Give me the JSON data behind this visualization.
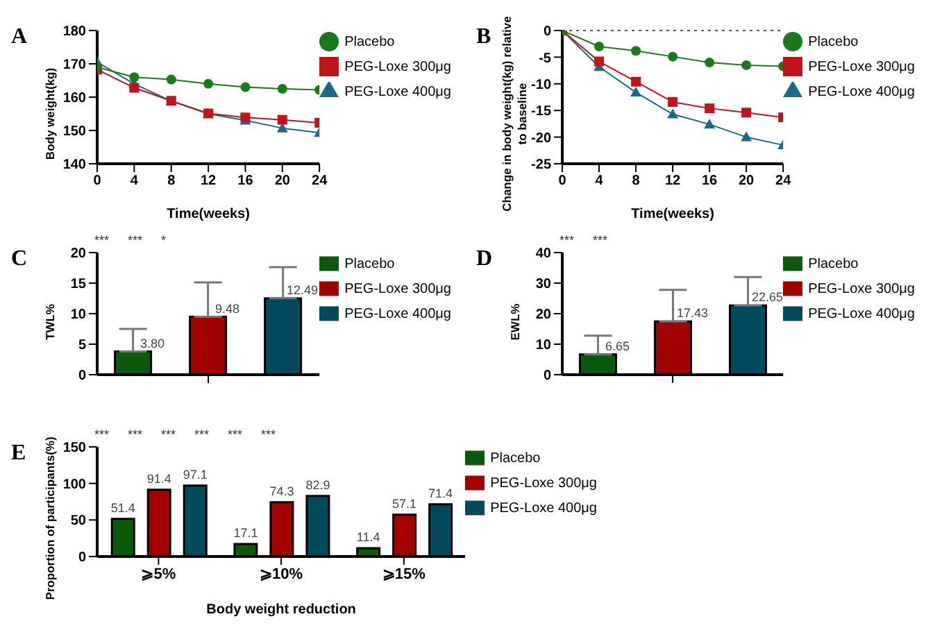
{
  "chart_data": [
    {
      "type": "line",
      "title": "A",
      "xlabel": "Time(weeks)",
      "ylabel": "Body weight(kg)",
      "x": [
        0,
        4,
        8,
        12,
        16,
        20,
        24
      ],
      "xlim": [
        0,
        24
      ],
      "xticks": [
        0,
        4,
        8,
        12,
        16,
        20,
        24
      ],
      "ylim": [
        140,
        180
      ],
      "yticks": [
        140,
        150,
        160,
        170,
        180
      ],
      "legend": "right",
      "series": [
        {
          "name": "Placebo",
          "color": "#1a7a1a",
          "marker": "circle",
          "values": [
            169,
            166,
            165.3,
            164,
            163,
            162.5,
            162.2
          ]
        },
        {
          "name": "PEG-Loxe 300μg",
          "color": "#c0141c",
          "marker": "square",
          "values": [
            168.3,
            162.8,
            158.9,
            155.1,
            153.9,
            153.2,
            152.3
          ]
        },
        {
          "name": "PEG-Loxe 400μg",
          "color": "#1a6a8a",
          "marker": "triangle",
          "values": [
            170.5,
            164,
            158.8,
            155,
            153,
            150.7,
            149.3
          ]
        }
      ]
    },
    {
      "type": "line",
      "title": "B",
      "xlabel": "Time(weeks)",
      "ylabel": "Change in body weight(kg) relative to baseline",
      "x": [
        0,
        4,
        8,
        12,
        16,
        20,
        24
      ],
      "xlim": [
        0,
        24
      ],
      "xticks": [
        0,
        4,
        8,
        12,
        16,
        20,
        24
      ],
      "ylim": [
        -25,
        0
      ],
      "yticks": [
        -25,
        -20,
        -15,
        -10,
        -5,
        0
      ],
      "legend": "right",
      "ref_lines": [
        {
          "axis": "y",
          "value": 0,
          "line_style": "dotted",
          "color": "#555555"
        }
      ],
      "series": [
        {
          "name": "Placebo",
          "color": "#1a7a1a",
          "marker": "circle",
          "values": [
            0,
            -3,
            -3.8,
            -4.9,
            -6,
            -6.5,
            -6.7
          ]
        },
        {
          "name": "PEG-Loxe 300μg",
          "color": "#c0141c",
          "marker": "square",
          "values": [
            0,
            -5.8,
            -9.6,
            -13.4,
            -14.6,
            -15.4,
            -16.3
          ]
        },
        {
          "name": "PEG-Loxe 400μg",
          "color": "#1a6a8a",
          "marker": "triangle",
          "values": [
            0,
            -6.8,
            -11.6,
            -15.7,
            -17.6,
            -20,
            -21.5
          ]
        }
      ]
    },
    {
      "type": "bar",
      "title": "C",
      "ylabel": "TWL%",
      "categories": [
        null
      ],
      "ylim": [
        0,
        20
      ],
      "yticks": [
        0,
        5,
        10,
        15,
        20
      ],
      "legend": "right",
      "annotations": [
        "***",
        "***",
        "*"
      ],
      "series": [
        {
          "name": "Placebo",
          "color": "#0b5a0b",
          "values": [
            3.8
          ],
          "value_labels": [
            "3.80"
          ],
          "errors": [
            [
              3.8,
              7.5
            ]
          ]
        },
        {
          "name": "PEG-Loxe 300μg",
          "color": "#a30000",
          "values": [
            9.48
          ],
          "value_labels": [
            "9.48"
          ],
          "errors": [
            [
              9.48,
              15.1
            ]
          ]
        },
        {
          "name": "PEG-Loxe 400μg",
          "color": "#044a5e",
          "values": [
            12.49
          ],
          "value_labels": [
            "12.49"
          ],
          "errors": [
            [
              12.49,
              17.6
            ]
          ]
        }
      ]
    },
    {
      "type": "bar",
      "title": "D",
      "ylabel": "EWL%",
      "categories": [
        null
      ],
      "ylim": [
        0,
        40
      ],
      "yticks": [
        0,
        10,
        20,
        30,
        40
      ],
      "legend": "right",
      "annotations": [
        "***",
        "***"
      ],
      "series": [
        {
          "name": "Placebo",
          "color": "#0b5a0b",
          "values": [
            6.65
          ],
          "value_labels": [
            "6.65"
          ],
          "errors": [
            [
              6.65,
              12.8
            ]
          ]
        },
        {
          "name": "PEG-Loxe 300μg",
          "color": "#a30000",
          "values": [
            17.43
          ],
          "value_labels": [
            "17.43"
          ],
          "errors": [
            [
              17.43,
              27.8
            ]
          ]
        },
        {
          "name": "PEG-Loxe 400μg",
          "color": "#044a5e",
          "values": [
            22.65
          ],
          "value_labels": [
            "22.65"
          ],
          "errors": [
            [
              22.65,
              32
            ]
          ]
        }
      ]
    },
    {
      "type": "bar",
      "title": "E",
      "xlabel": "Body weight reduction",
      "ylabel": "Proportion of participants(%)",
      "categories": [
        "⩾5%",
        "⩾10%",
        "⩾15%"
      ],
      "ylim": [
        0,
        150
      ],
      "yticks": [
        0,
        50,
        100,
        150
      ],
      "legend": "right",
      "data_labels": true,
      "annotations": [
        "***",
        "***",
        "***",
        "***",
        "***",
        "***"
      ],
      "series": [
        {
          "name": "Placebo",
          "color": "#0b5a0b",
          "values": [
            51.4,
            17.1,
            11.4
          ]
        },
        {
          "name": "PEG-Loxe 300μg",
          "color": "#a30000",
          "values": [
            91.4,
            74.3,
            57.1
          ]
        },
        {
          "name": "PEG-Loxe 400μg",
          "color": "#044a5e",
          "values": [
            97.1,
            82.9,
            71.4
          ]
        }
      ]
    }
  ]
}
